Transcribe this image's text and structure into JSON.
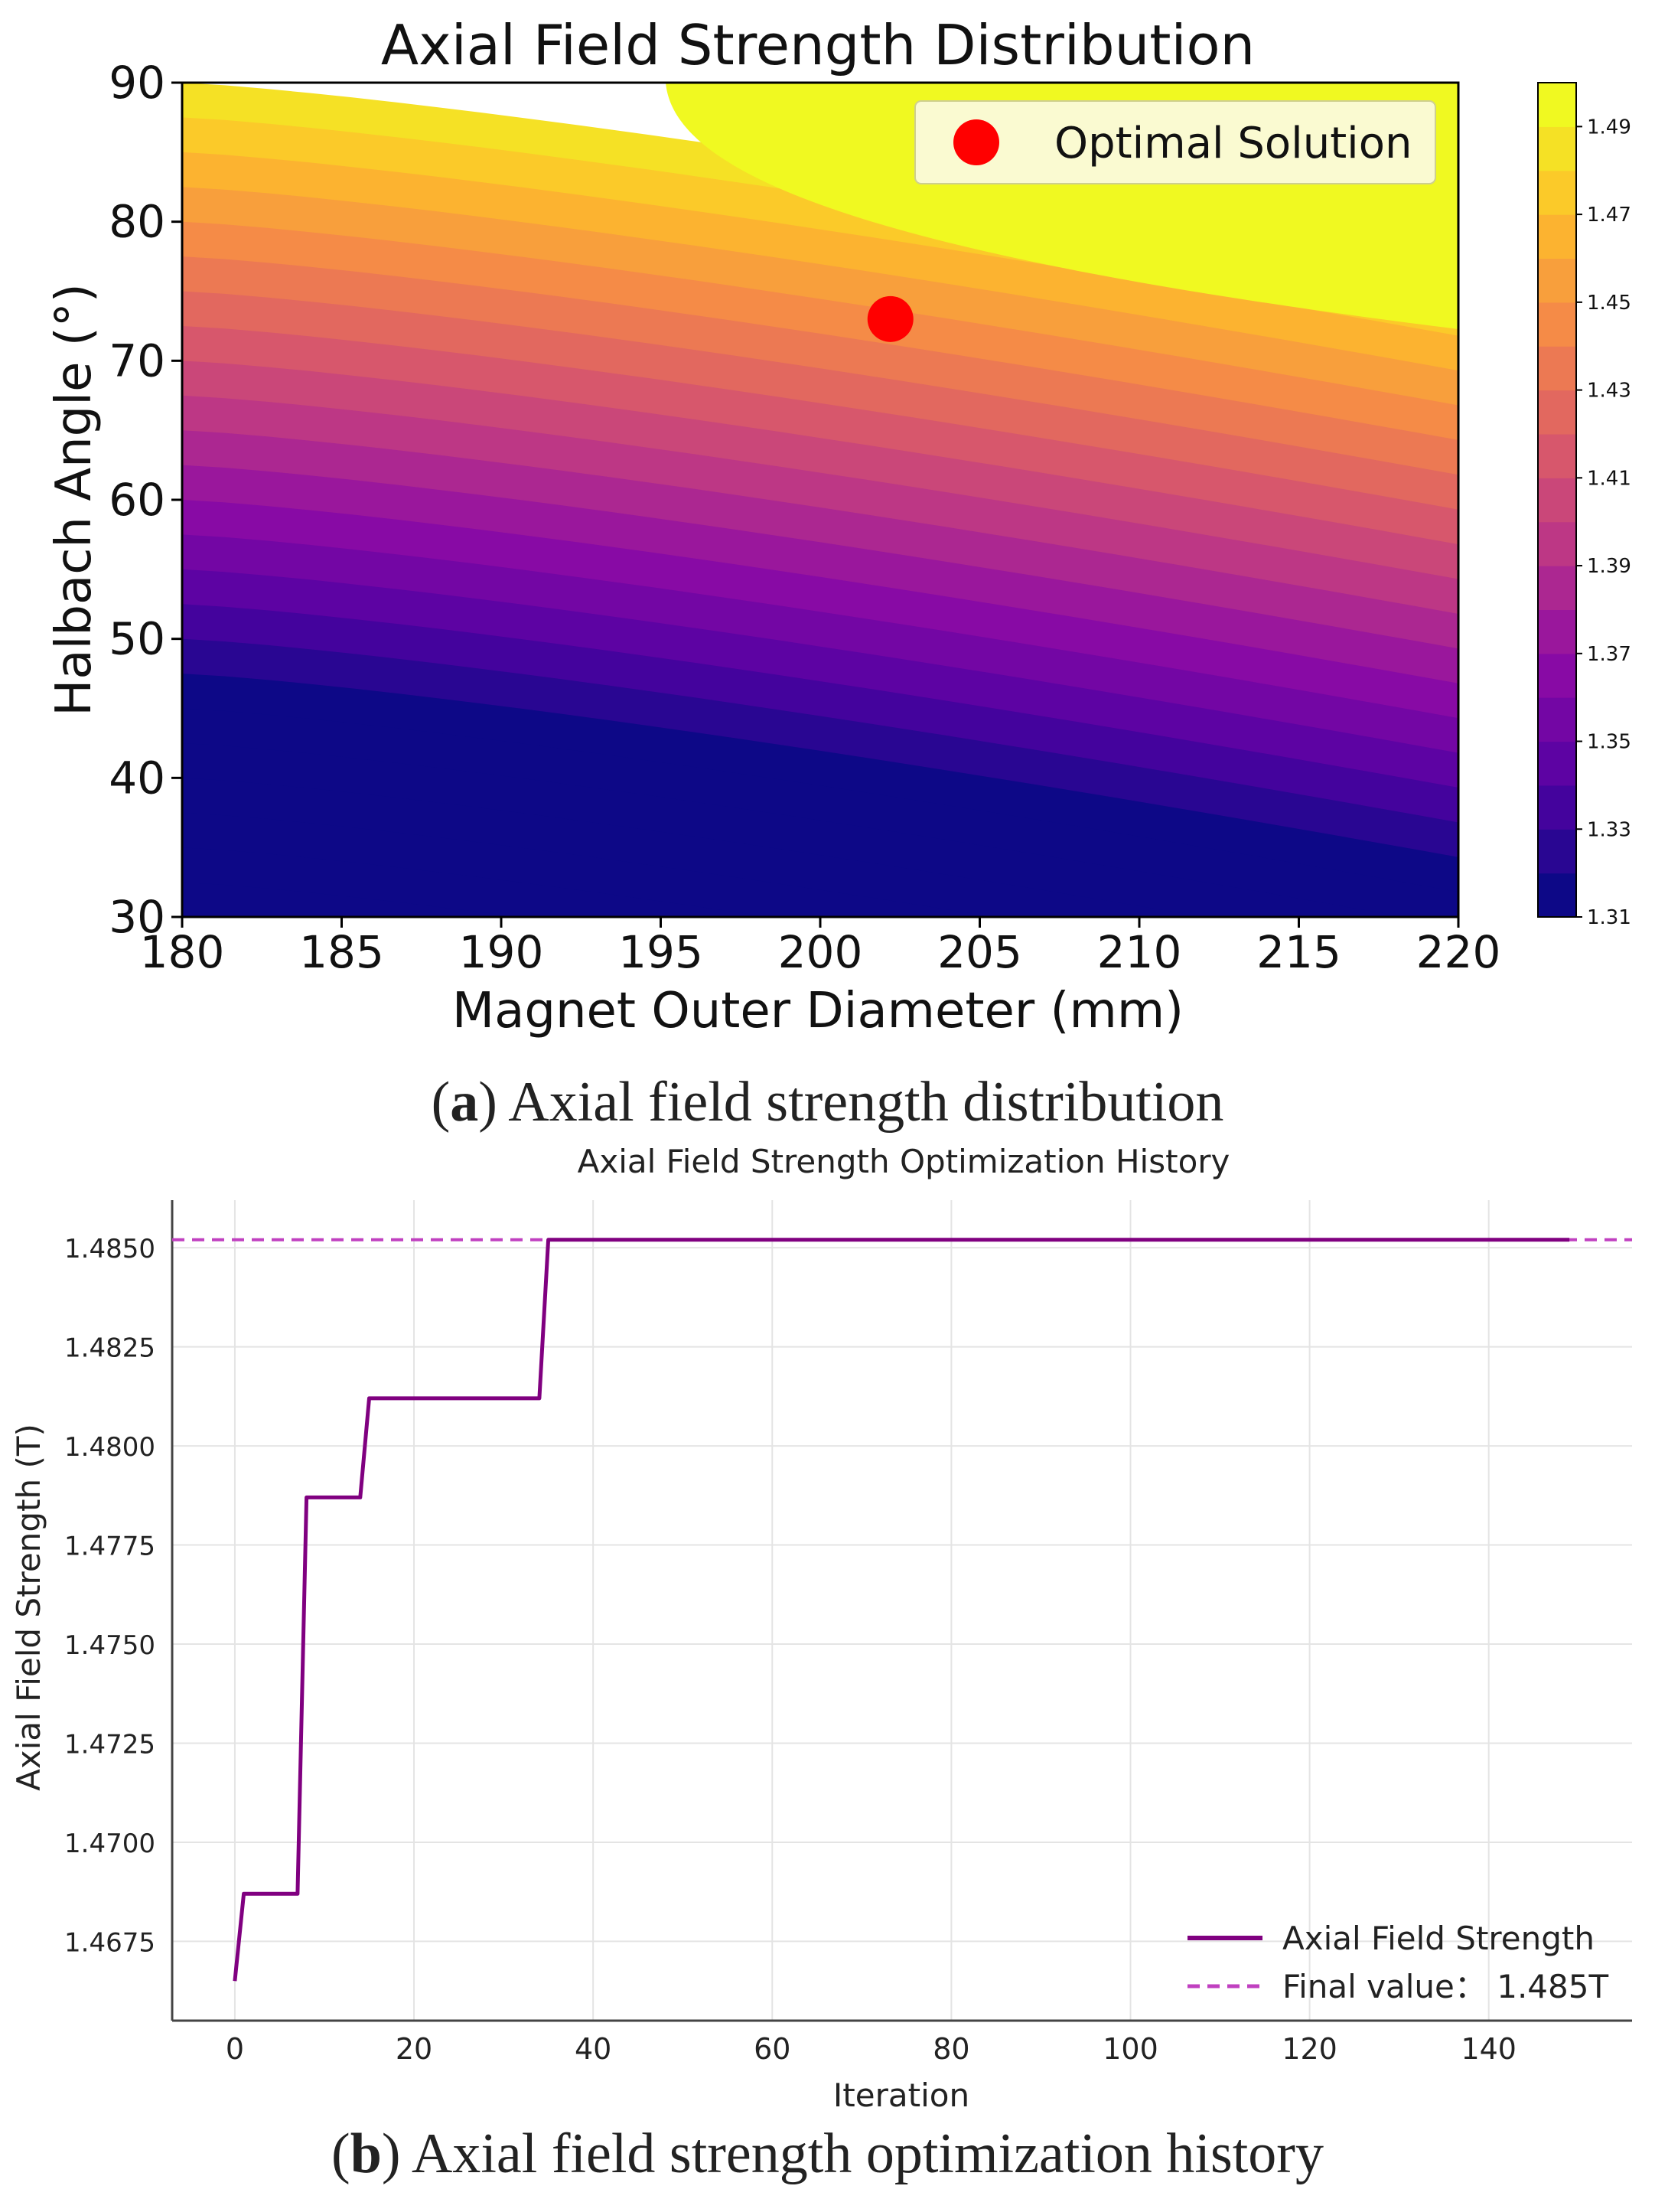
{
  "figure": {
    "caption_a_letter": "a",
    "caption_a_text": "Axial field strength distribution",
    "caption_b_letter": "b",
    "caption_b_text": "Axial field strength optimization history"
  },
  "chart_data": [
    {
      "type": "contour",
      "title": "Axial Field Strength Distribution",
      "xlabel": "Magnet Outer Diameter (mm)",
      "ylabel": "Halbach Angle (°)",
      "xlim": [
        180,
        220
      ],
      "ylim": [
        30,
        90
      ],
      "x_ticks": [
        "180",
        "185",
        "190",
        "195",
        "200",
        "205",
        "210",
        "215",
        "220"
      ],
      "y_ticks": [
        "30",
        "40",
        "50",
        "60",
        "70",
        "80",
        "90"
      ],
      "colorbar": {
        "colormap": "plasma",
        "range": [
          1.31,
          1.5
        ],
        "ticks": [
          "1.31",
          "1.33",
          "1.35",
          "1.37",
          "1.39",
          "1.41",
          "1.43",
          "1.45",
          "1.47",
          "1.49"
        ]
      },
      "optimal_point": {
        "x": 202.2,
        "y": 73.0,
        "color": "#ff0000"
      },
      "legend": {
        "entries": [
          "Optimal Solution"
        ],
        "position": "top-right"
      },
      "grid": false
    },
    {
      "type": "line",
      "title": "Axial Field Strength Optimization History",
      "xlabel": "Iteration",
      "ylabel": "Axial Field Strength (T)",
      "xlim": [
        -7,
        156
      ],
      "ylim": [
        1.4655,
        1.4862
      ],
      "x_ticks": [
        "0",
        "20",
        "40",
        "60",
        "80",
        "100",
        "120",
        "140"
      ],
      "y_ticks": [
        "1.4675",
        "1.4700",
        "1.4725",
        "1.4750",
        "1.4775",
        "1.4800",
        "1.4825",
        "1.4850"
      ],
      "series": [
        {
          "name": "Axial Field Strength",
          "color": "#800080",
          "x": [
            0,
            1,
            7,
            8,
            14,
            15,
            34,
            35,
            149
          ],
          "y": [
            1.4665,
            1.4687,
            1.4687,
            1.4787,
            1.4787,
            1.4812,
            1.4812,
            1.4852,
            1.4852
          ]
        }
      ],
      "final_line": {
        "name": "Final value： 1.485T",
        "y": 1.4852,
        "style": "dashed",
        "color": "#c040c0"
      },
      "legend": {
        "position": "bottom-right"
      },
      "grid": true
    }
  ]
}
